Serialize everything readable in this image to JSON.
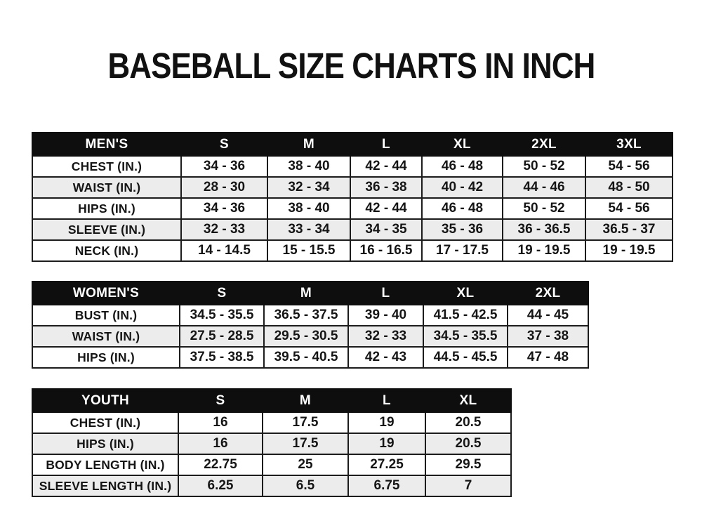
{
  "title": "BASEBALL SIZE CHARTS IN INCH",
  "colors": {
    "header_bg": "#0e0e0e",
    "header_text": "#ffffff",
    "row_alt_bg": "#ececec",
    "border": "#1c1c1c",
    "text": "#151515",
    "page_bg": "#ffffff"
  },
  "tables": [
    {
      "name": "MEN'S",
      "columns": [
        "S",
        "M",
        "L",
        "XL",
        "2XL",
        "3XL"
      ],
      "rows": [
        {
          "label": "CHEST (IN.)",
          "values": [
            "34 - 36",
            "38 - 40",
            "42 - 44",
            "46 - 48",
            "50 - 52",
            "54 - 56"
          ]
        },
        {
          "label": "WAIST (IN.)",
          "values": [
            "28 - 30",
            "32 - 34",
            "36 - 38",
            "40 - 42",
            "44 - 46",
            "48 - 50"
          ]
        },
        {
          "label": "HIPS (IN.)",
          "values": [
            "34 - 36",
            "38 - 40",
            "42 - 44",
            "46 - 48",
            "50 - 52",
            "54 - 56"
          ]
        },
        {
          "label": "SLEEVE (IN.)",
          "values": [
            "32 - 33",
            "33 - 34",
            "34 - 35",
            "35 - 36",
            "36 - 36.5",
            "36.5 - 37"
          ]
        },
        {
          "label": "NECK (IN.)",
          "values": [
            "14 - 14.5",
            "15 - 15.5",
            "16 - 16.5",
            "17 - 17.5",
            "19 - 19.5",
            "19 - 19.5"
          ]
        }
      ]
    },
    {
      "name": "WOMEN'S",
      "columns": [
        "S",
        "M",
        "L",
        "XL",
        "2XL"
      ],
      "rows": [
        {
          "label": "BUST (IN.)",
          "values": [
            "34.5 - 35.5",
            "36.5 - 37.5",
            "39 - 40",
            "41.5 - 42.5",
            "44 - 45"
          ]
        },
        {
          "label": "WAIST (IN.)",
          "values": [
            "27.5 - 28.5",
            "29.5 - 30.5",
            "32 - 33",
            "34.5 - 35.5",
            "37 - 38"
          ]
        },
        {
          "label": "HIPS (IN.)",
          "values": [
            "37.5 - 38.5",
            "39.5 - 40.5",
            "42 - 43",
            "44.5 - 45.5",
            "47 - 48"
          ]
        }
      ]
    },
    {
      "name": "YOUTH",
      "columns": [
        "S",
        "M",
        "L",
        "XL"
      ],
      "rows": [
        {
          "label": "CHEST (IN.)",
          "values": [
            "16",
            "17.5",
            "19",
            "20.5"
          ]
        },
        {
          "label": "HIPS (IN.)",
          "values": [
            "16",
            "17.5",
            "19",
            "20.5"
          ]
        },
        {
          "label": "BODY LENGTH (IN.)",
          "values": [
            "22.75",
            "25",
            "27.25",
            "29.5"
          ]
        },
        {
          "label": "SLEEVE LENGTH (IN.)",
          "values": [
            "6.25",
            "6.5",
            "6.75",
            "7"
          ]
        }
      ]
    }
  ]
}
